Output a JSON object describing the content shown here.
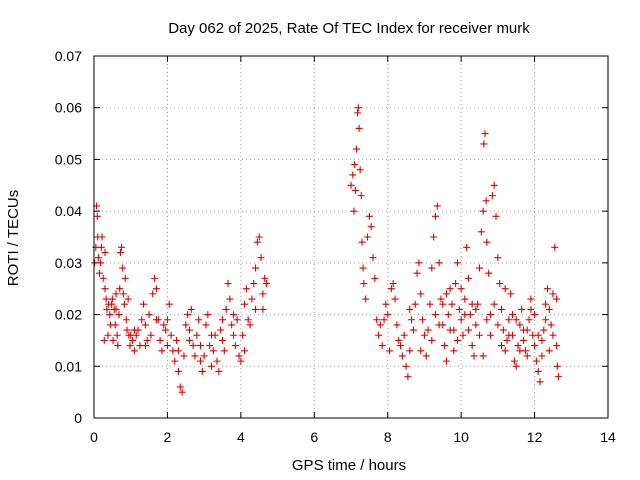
{
  "chart_data": {
    "type": "scatter",
    "title": "Day 062 of 2025, Rate Of TEC Index for receiver murk",
    "xlabel": "GPS time / hours",
    "ylabel": "ROTI / TECUs",
    "xlim": [
      0,
      14
    ],
    "ylim": [
      0,
      0.07
    ],
    "grid": true,
    "marker": "+",
    "color": "#e00000",
    "x_ticks": [
      0,
      2,
      4,
      6,
      8,
      10,
      12,
      14
    ],
    "x_tick_labels": [
      "0",
      "2",
      "4",
      "6",
      "8",
      "10",
      "12",
      "14"
    ],
    "y_ticks": [
      0,
      0.01,
      0.02,
      0.03,
      0.04,
      0.05,
      0.06,
      0.07
    ],
    "y_tick_labels": [
      "0",
      "0.01",
      "0.02",
      "0.03",
      "0.04",
      "0.05",
      "0.06",
      "0.07"
    ],
    "series": [
      {
        "name": "ROTI",
        "points": [
          [
            0.02,
            0.03
          ],
          [
            0.05,
            0.033
          ],
          [
            0.07,
            0.041
          ],
          [
            0.09,
            0.039
          ],
          [
            0.1,
            0.035
          ],
          [
            0.12,
            0.031
          ],
          [
            0.15,
            0.028
          ],
          [
            0.18,
            0.03
          ],
          [
            0.2,
            0.033
          ],
          [
            0.22,
            0.035
          ],
          [
            0.25,
            0.027
          ],
          [
            0.28,
            0.015
          ],
          [
            0.3,
            0.025
          ],
          [
            0.33,
            0.023
          ],
          [
            0.35,
            0.021
          ],
          [
            0.38,
            0.016
          ],
          [
            0.4,
            0.022
          ],
          [
            0.43,
            0.02
          ],
          [
            0.45,
            0.018
          ],
          [
            0.48,
            0.022
          ],
          [
            0.5,
            0.023
          ],
          [
            0.52,
            0.015
          ],
          [
            0.55,
            0.021
          ],
          [
            0.58,
            0.018
          ],
          [
            0.6,
            0.024
          ],
          [
            0.63,
            0.016
          ],
          [
            0.65,
            0.014
          ],
          [
            0.68,
            0.02
          ],
          [
            0.7,
            0.025
          ],
          [
            0.72,
            0.032
          ],
          [
            0.75,
            0.033
          ],
          [
            0.78,
            0.029
          ],
          [
            0.8,
            0.024
          ],
          [
            0.83,
            0.022
          ],
          [
            0.85,
            0.027
          ],
          [
            0.88,
            0.019
          ],
          [
            0.9,
            0.017
          ],
          [
            0.93,
            0.023
          ],
          [
            0.95,
            0.016
          ],
          [
            0.98,
            0.014
          ],
          [
            1.0,
            0.016
          ],
          [
            1.05,
            0.015
          ],
          [
            1.1,
            0.013
          ],
          [
            1.15,
            0.016
          ],
          [
            1.2,
            0.017
          ],
          [
            1.25,
            0.014
          ],
          [
            1.3,
            0.019
          ],
          [
            1.35,
            0.022
          ],
          [
            1.4,
            0.018
          ],
          [
            1.45,
            0.015
          ],
          [
            1.5,
            0.02
          ],
          [
            1.55,
            0.016
          ],
          [
            1.6,
            0.024
          ],
          [
            1.65,
            0.027
          ],
          [
            1.7,
            0.025
          ],
          [
            1.75,
            0.019
          ],
          [
            1.8,
            0.015
          ],
          [
            1.85,
            0.013
          ],
          [
            1.9,
            0.018
          ],
          [
            1.95,
            0.017
          ],
          [
            2.0,
            0.019
          ],
          [
            2.05,
            0.022
          ],
          [
            2.1,
            0.016
          ],
          [
            2.15,
            0.013
          ],
          [
            2.2,
            0.011
          ],
          [
            2.25,
            0.015
          ],
          [
            2.3,
            0.009
          ],
          [
            2.35,
            0.006
          ],
          [
            2.4,
            0.005
          ],
          [
            2.45,
            0.012
          ],
          [
            2.5,
            0.018
          ],
          [
            2.55,
            0.02
          ],
          [
            2.6,
            0.017
          ],
          [
            2.65,
            0.021
          ],
          [
            2.7,
            0.014
          ],
          [
            2.75,
            0.012
          ],
          [
            2.8,
            0.016
          ],
          [
            2.85,
            0.019
          ],
          [
            2.9,
            0.011
          ],
          [
            2.95,
            0.009
          ],
          [
            3.0,
            0.012
          ],
          [
            3.05,
            0.018
          ],
          [
            3.1,
            0.02
          ],
          [
            3.15,
            0.014
          ],
          [
            3.2,
            0.01
          ],
          [
            3.25,
            0.013
          ],
          [
            3.3,
            0.016
          ],
          [
            3.35,
            0.011
          ],
          [
            3.4,
            0.009
          ],
          [
            3.45,
            0.017
          ],
          [
            3.5,
            0.015
          ],
          [
            3.55,
            0.013
          ],
          [
            3.6,
            0.021
          ],
          [
            3.65,
            0.026
          ],
          [
            3.7,
            0.023
          ],
          [
            3.75,
            0.018
          ],
          [
            3.8,
            0.016
          ],
          [
            3.85,
            0.014
          ],
          [
            3.9,
            0.019
          ],
          [
            3.95,
            0.012
          ],
          [
            4.0,
            0.011
          ],
          [
            4.05,
            0.016
          ],
          [
            4.1,
            0.022
          ],
          [
            4.15,
            0.025
          ],
          [
            4.2,
            0.019
          ],
          [
            4.25,
            0.018
          ],
          [
            4.3,
            0.023
          ],
          [
            4.35,
            0.026
          ],
          [
            4.4,
            0.029
          ],
          [
            4.45,
            0.034
          ],
          [
            4.5,
            0.035
          ],
          [
            4.55,
            0.031
          ],
          [
            4.6,
            0.024
          ],
          [
            4.65,
            0.027
          ],
          [
            4.7,
            0.026
          ],
          [
            7.0,
            0.045
          ],
          [
            7.05,
            0.047
          ],
          [
            7.08,
            0.04
          ],
          [
            7.1,
            0.049
          ],
          [
            7.12,
            0.044
          ],
          [
            7.15,
            0.052
          ],
          [
            7.18,
            0.059
          ],
          [
            7.2,
            0.06
          ],
          [
            7.22,
            0.056
          ],
          [
            7.25,
            0.048
          ],
          [
            7.28,
            0.043
          ],
          [
            7.3,
            0.034
          ],
          [
            7.33,
            0.029
          ],
          [
            7.35,
            0.026
          ],
          [
            7.4,
            0.023
          ],
          [
            7.45,
            0.035
          ],
          [
            7.5,
            0.039
          ],
          [
            7.55,
            0.037
          ],
          [
            7.6,
            0.031
          ],
          [
            7.65,
            0.027
          ],
          [
            7.7,
            0.019
          ],
          [
            7.75,
            0.016
          ],
          [
            7.8,
            0.018
          ],
          [
            7.85,
            0.014
          ],
          [
            7.9,
            0.019
          ],
          [
            7.95,
            0.022
          ],
          [
            8.0,
            0.02
          ],
          [
            8.05,
            0.013
          ],
          [
            8.1,
            0.025
          ],
          [
            8.15,
            0.026
          ],
          [
            8.2,
            0.023
          ],
          [
            8.25,
            0.018
          ],
          [
            8.3,
            0.015
          ],
          [
            8.35,
            0.014
          ],
          [
            8.4,
            0.012
          ],
          [
            8.45,
            0.016
          ],
          [
            8.5,
            0.01
          ],
          [
            8.55,
            0.008
          ],
          [
            8.6,
            0.013
          ],
          [
            8.65,
            0.019
          ],
          [
            8.7,
            0.017
          ],
          [
            8.75,
            0.022
          ],
          [
            8.8,
            0.028
          ],
          [
            8.85,
            0.03
          ],
          [
            8.9,
            0.024
          ],
          [
            8.95,
            0.019
          ],
          [
            9.0,
            0.016
          ],
          [
            9.05,
            0.012
          ],
          [
            9.1,
            0.017
          ],
          [
            9.15,
            0.022
          ],
          [
            9.2,
            0.029
          ],
          [
            9.25,
            0.035
          ],
          [
            9.3,
            0.039
          ],
          [
            9.35,
            0.041
          ],
          [
            9.4,
            0.03
          ],
          [
            9.45,
            0.023
          ],
          [
            9.5,
            0.018
          ],
          [
            9.55,
            0.014
          ],
          [
            9.6,
            0.011
          ],
          [
            9.65,
            0.02
          ],
          [
            9.7,
            0.025
          ],
          [
            9.75,
            0.022
          ],
          [
            9.8,
            0.017
          ],
          [
            9.85,
            0.026
          ],
          [
            9.9,
            0.03
          ],
          [
            9.95,
            0.021
          ],
          [
            10.0,
            0.019
          ],
          [
            10.05,
            0.016
          ],
          [
            10.1,
            0.023
          ],
          [
            10.15,
            0.033
          ],
          [
            10.2,
            0.027
          ],
          [
            10.25,
            0.02
          ],
          [
            10.3,
            0.014
          ],
          [
            10.35,
            0.012
          ],
          [
            10.4,
            0.018
          ],
          [
            10.45,
            0.022
          ],
          [
            10.5,
            0.029
          ],
          [
            10.55,
            0.036
          ],
          [
            10.6,
            0.04
          ],
          [
            10.62,
            0.053
          ],
          [
            10.65,
            0.055
          ],
          [
            10.68,
            0.042
          ],
          [
            10.7,
            0.034
          ],
          [
            10.75,
            0.028
          ],
          [
            10.8,
            0.02
          ],
          [
            10.85,
            0.043
          ],
          [
            10.9,
            0.045
          ],
          [
            10.95,
            0.039
          ],
          [
            11.0,
            0.031
          ],
          [
            11.05,
            0.026
          ],
          [
            11.1,
            0.021
          ],
          [
            11.15,
            0.017
          ],
          [
            11.2,
            0.013
          ],
          [
            11.25,
            0.015
          ],
          [
            11.3,
            0.019
          ],
          [
            11.35,
            0.024
          ],
          [
            11.4,
            0.016
          ],
          [
            11.45,
            0.011
          ],
          [
            11.5,
            0.01
          ],
          [
            11.55,
            0.014
          ],
          [
            11.6,
            0.018
          ],
          [
            11.65,
            0.021
          ],
          [
            11.7,
            0.017
          ],
          [
            11.75,
            0.013
          ],
          [
            11.8,
            0.012
          ],
          [
            11.85,
            0.019
          ],
          [
            11.9,
            0.023
          ],
          [
            11.95,
            0.016
          ],
          [
            12.0,
            0.014
          ],
          [
            12.05,
            0.011
          ],
          [
            12.1,
            0.009
          ],
          [
            12.15,
            0.007
          ],
          [
            12.2,
            0.012
          ],
          [
            12.25,
            0.017
          ],
          [
            12.3,
            0.022
          ],
          [
            12.35,
            0.025
          ],
          [
            12.4,
            0.021
          ],
          [
            12.45,
            0.018
          ],
          [
            12.5,
            0.024
          ],
          [
            12.55,
            0.033
          ],
          [
            12.6,
            0.014
          ],
          [
            12.62,
            0.01
          ],
          [
            12.65,
            0.008
          ],
          [
            8.6,
            0.021
          ],
          [
            8.9,
            0.013
          ],
          [
            9.2,
            0.015
          ],
          [
            9.4,
            0.018
          ],
          [
            9.6,
            0.024
          ],
          [
            9.8,
            0.013
          ],
          [
            10.0,
            0.025
          ],
          [
            10.2,
            0.017
          ],
          [
            10.4,
            0.021
          ],
          [
            10.6,
            0.012
          ],
          [
            10.8,
            0.016
          ],
          [
            11.0,
            0.018
          ],
          [
            11.2,
            0.025
          ],
          [
            11.4,
            0.02
          ],
          [
            11.6,
            0.013
          ],
          [
            11.8,
            0.017
          ],
          [
            12.0,
            0.02
          ],
          [
            12.2,
            0.015
          ],
          [
            12.4,
            0.013
          ],
          [
            12.6,
            0.023
          ],
          [
            9.3,
            0.02
          ],
          [
            9.5,
            0.022
          ],
          [
            9.7,
            0.017
          ],
          [
            9.9,
            0.015
          ],
          [
            10.1,
            0.02
          ],
          [
            10.3,
            0.022
          ],
          [
            10.5,
            0.016
          ],
          [
            10.7,
            0.019
          ],
          [
            10.9,
            0.022
          ],
          [
            11.1,
            0.014
          ],
          [
            11.3,
            0.016
          ],
          [
            11.5,
            0.019
          ],
          [
            11.7,
            0.015
          ],
          [
            11.9,
            0.021
          ],
          [
            12.1,
            0.016
          ],
          [
            12.3,
            0.019
          ],
          [
            12.5,
            0.016
          ],
          [
            0.3,
            0.032
          ],
          [
            0.6,
            0.021
          ],
          [
            1.1,
            0.017
          ],
          [
            1.4,
            0.014
          ],
          [
            1.7,
            0.019
          ],
          [
            2.0,
            0.014
          ],
          [
            2.3,
            0.013
          ],
          [
            2.6,
            0.015
          ],
          [
            2.9,
            0.014
          ],
          [
            3.2,
            0.016
          ],
          [
            3.5,
            0.019
          ],
          [
            3.8,
            0.02
          ],
          [
            4.1,
            0.013
          ],
          [
            4.4,
            0.021
          ],
          [
            4.6,
            0.021
          ]
        ]
      }
    ]
  }
}
